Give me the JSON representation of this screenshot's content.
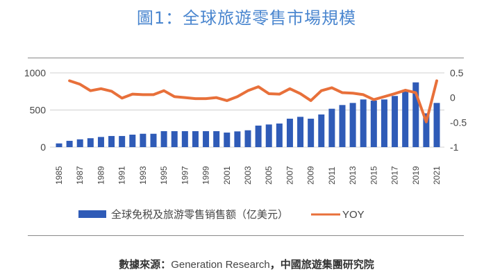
{
  "title": "圖1：全球旅遊零售市場規模",
  "source": {
    "label": "數據來源：",
    "org1": "Generation Research",
    "sep": "，",
    "org2": "中國旅遊集團研究院"
  },
  "chart_data": {
    "type": "bar+line",
    "title": "",
    "categories": [
      1985,
      1986,
      1987,
      1988,
      1989,
      1990,
      1991,
      1992,
      1993,
      1994,
      1995,
      1996,
      1997,
      1998,
      1999,
      2000,
      2001,
      2002,
      2003,
      2004,
      2005,
      2006,
      2007,
      2008,
      2009,
      2010,
      2011,
      2012,
      2013,
      2014,
      2015,
      2016,
      2017,
      2018,
      2019,
      2020,
      2021
    ],
    "x_tick_labels": [
      "1985",
      "1987",
      "1989",
      "1991",
      "1993",
      "1995",
      "1997",
      "1999",
      "2001",
      "2003",
      "2005",
      "2007",
      "2009",
      "2011",
      "2013",
      "2015",
      "2017",
      "2019",
      "2021"
    ],
    "series": [
      {
        "name": "全球免税及旅游零售销售额（亿美元）",
        "type": "bar",
        "axis": "left",
        "color": "#2f5bb7",
        "values": [
          50,
          85,
          105,
          120,
          137,
          150,
          150,
          168,
          180,
          180,
          215,
          215,
          215,
          215,
          215,
          215,
          196,
          212,
          227,
          290,
          305,
          318,
          383,
          408,
          383,
          440,
          517,
          567,
          595,
          642,
          626,
          642,
          689,
          757,
          872,
          455,
          595
        ]
      },
      {
        "name": "YOY",
        "type": "line",
        "axis": "right",
        "color": "#e8703a",
        "values": [
          null,
          0.34,
          0.27,
          0.14,
          0.18,
          0.13,
          -0.01,
          0.07,
          0.06,
          0.06,
          0.14,
          0.02,
          0,
          -0.02,
          -0.02,
          0,
          -0.06,
          0.02,
          0.14,
          0.22,
          0.08,
          0.07,
          0.18,
          0.08,
          -0.06,
          0.14,
          0.2,
          0.1,
          0.09,
          0.06,
          -0.04,
          0.02,
          0.08,
          0.15,
          0.1,
          -0.49,
          0.34
        ]
      }
    ],
    "y_left": {
      "ylim": [
        0,
        1000
      ],
      "ticks": [
        "0",
        "500",
        "1000"
      ]
    },
    "y_right": {
      "ylim": [
        -1,
        0.5
      ],
      "ticks": [
        "-1",
        "-0.5",
        "0",
        "0.5"
      ]
    },
    "grid": true,
    "legend": "bottom"
  }
}
